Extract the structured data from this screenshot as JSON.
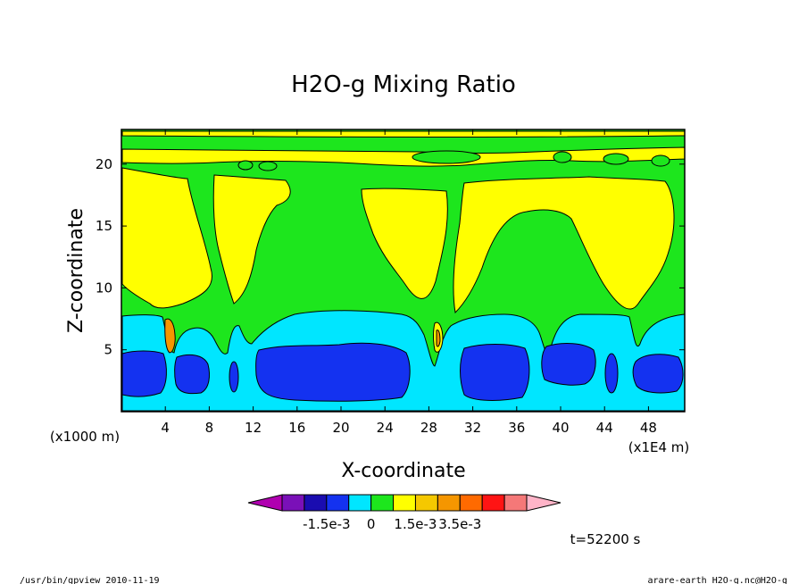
{
  "chart_data": {
    "type": "heatmap",
    "title": "H2O-g Mixing Ratio",
    "xlabel": "X-coordinate",
    "ylabel": "Z-coordinate",
    "x_unit": "(x1E4 m)",
    "y_unit": "(x1000 m)",
    "xlim": [
      0,
      51.3
    ],
    "ylim": [
      0,
      22.8
    ],
    "x_ticks": [
      "4",
      "8",
      "12",
      "16",
      "20",
      "24",
      "28",
      "32",
      "36",
      "40",
      "44",
      "48"
    ],
    "y_ticks": [
      "5",
      "10",
      "15",
      "20"
    ],
    "colorbar": {
      "colors": [
        "#b000b0",
        "#7a10b8",
        "#1a0cb0",
        "#1432f0",
        "#00e6ff",
        "#1de61d",
        "#ffff00",
        "#f5c800",
        "#f59600",
        "#ff6a00",
        "#ff1414",
        "#f57878",
        "#ffb4c8"
      ],
      "labels": [
        {
          "text": "-1.5e-3",
          "value": -0.0015
        },
        {
          "text": "0",
          "value": 0
        },
        {
          "text": "1.5e-3",
          "value": 0.0015
        },
        {
          "text": "3.5e-3",
          "value": 0.0035
        }
      ]
    },
    "time_label": "t=52200 s"
  },
  "footer": {
    "left": "/usr/bin/gpview  2010-11-19",
    "right": "arare-earth_H2O-g.nc@H2O-g"
  }
}
